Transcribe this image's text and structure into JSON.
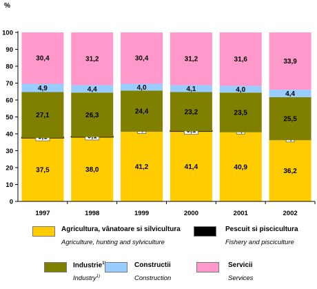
{
  "chart_data": {
    "type": "bar",
    "stacked": true,
    "y_unit_label": "%",
    "ylim": [
      0,
      100
    ],
    "yticks": [
      0,
      10,
      20,
      30,
      40,
      50,
      60,
      70,
      80,
      90,
      100
    ],
    "grid": false,
    "categories": [
      "1997",
      "1998",
      "1999",
      "2000",
      "2001",
      "2002"
    ],
    "series": [
      {
        "key": "agri",
        "color": "#ffcc00",
        "values": [
          37.5,
          38.0,
          41.2,
          41.4,
          40.9,
          36.2
        ],
        "labels": [
          "37,5",
          "38,0",
          "41,2",
          "41,4",
          "40,9",
          "36,2"
        ]
      },
      {
        "key": "fish",
        "color": "#000000",
        "values": [
          0.1,
          0.1,
          0,
          0.1,
          0,
          0
        ],
        "labels": [
          "0,1",
          "0,1",
          "*)",
          "0,1",
          "*)",
          "*)"
        ]
      },
      {
        "key": "ind",
        "color": "#808000",
        "values": [
          27.1,
          26.3,
          24.4,
          23.2,
          23.5,
          25.5
        ],
        "labels": [
          "27,1",
          "26,3",
          "24,4",
          "23,2",
          "23,5",
          "25,5"
        ]
      },
      {
        "key": "cons",
        "color": "#99ccff",
        "values": [
          4.9,
          4.4,
          4.0,
          4.1,
          4.0,
          4.4
        ],
        "labels": [
          "4,9",
          "4,4",
          "4,0",
          "4,1",
          "4,0",
          "4,4"
        ]
      },
      {
        "key": "serv",
        "color": "#ff99cc",
        "values": [
          30.4,
          31.2,
          30.4,
          31.2,
          31.6,
          33.9
        ],
        "labels": [
          "30,4",
          "31,2",
          "30,4",
          "31,2",
          "31,6",
          "33,9"
        ]
      }
    ],
    "legend": [
      {
        "ro": "Agricultura, vânatoare si silvicultura",
        "sup": "",
        "en": "Agriculture, hunting and sylviculture",
        "en_sup": "",
        "color": "#ffcc00"
      },
      {
        "ro": "Pescuit si piscicultura",
        "sup": "",
        "en": "Fishery and pisciculture",
        "en_sup": "",
        "color": "#000000"
      },
      {
        "ro": "Industrie",
        "sup": "1)",
        "en": "Industry",
        "en_sup": "1)",
        "color": "#808000"
      },
      {
        "ro": "Constructii",
        "sup": "",
        "en": "Construction",
        "en_sup": "",
        "color": "#99ccff"
      },
      {
        "ro": "Servicii",
        "sup": "",
        "en": "Services",
        "en_sup": "",
        "color": "#ff99cc"
      }
    ]
  }
}
